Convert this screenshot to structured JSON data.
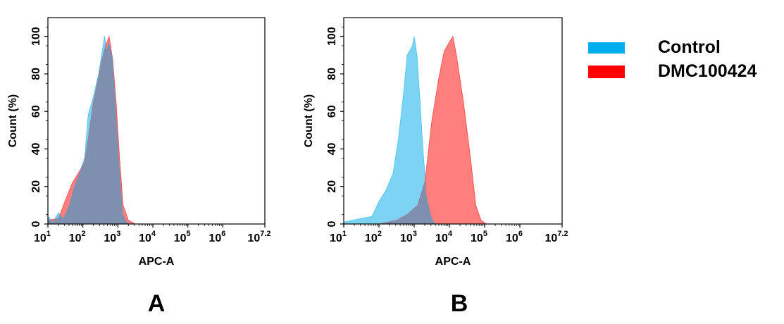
{
  "colors": {
    "control": "#00aeef",
    "sample": "#ff0000",
    "control_fill": "#7dd3f3",
    "sample_fill": "#ff7f7f",
    "overlap_fill": "#7f8fb0"
  },
  "legend": {
    "placement": "right",
    "items": [
      {
        "label": "Control",
        "color": "#00aeef"
      },
      {
        "label": "DMC100424",
        "color": "#ff0000"
      }
    ]
  },
  "chart_data": [
    {
      "type": "area",
      "panel_label": "A",
      "xlabel": "APC-A",
      "ylabel": "Count  (%)",
      "xscale": "log",
      "xlim": [
        10,
        15848932
      ],
      "ylim": [
        0,
        110
      ],
      "x_ticks": [
        {
          "base": "10",
          "exp": "1",
          "value": 10
        },
        {
          "base": "10",
          "exp": "2",
          "value": 100
        },
        {
          "base": "10",
          "exp": "3",
          "value": 1000
        },
        {
          "base": "10",
          "exp": "4",
          "value": 10000
        },
        {
          "base": "10",
          "exp": "5",
          "value": 100000
        },
        {
          "base": "10",
          "exp": "6",
          "value": 1000000
        },
        {
          "base": "10",
          "exp": "7.2",
          "value": 15848932
        }
      ],
      "y_ticks": [
        "0",
        "20",
        "40",
        "60",
        "80",
        "100"
      ],
      "grid": false,
      "series": [
        {
          "name": "Control",
          "x": [
            10,
            14,
            20,
            28,
            40,
            56,
            79,
            112,
            141,
            200,
            282,
            355,
            417,
            479,
            562,
            708,
            891,
            1122,
            1413,
            1778,
            2512
          ],
          "y": [
            4,
            1,
            6,
            3,
            10,
            20,
            27,
            35,
            58,
            68,
            80,
            92,
            100,
            93,
            97,
            88,
            60,
            30,
            5,
            1,
            0
          ]
        },
        {
          "name": "DMC100424",
          "x": [
            10,
            20,
            32,
            50,
            79,
            112,
            141,
            200,
            282,
            355,
            447,
            562,
            708,
            891,
            1122,
            1413,
            1995,
            3162
          ],
          "y": [
            2,
            3,
            13,
            22,
            28,
            33,
            45,
            65,
            78,
            88,
            95,
            100,
            88,
            65,
            35,
            10,
            2,
            0
          ]
        }
      ]
    },
    {
      "type": "area",
      "panel_label": "B",
      "xlabel": "APC-A",
      "ylabel": "Count  (%)",
      "xscale": "log",
      "xlim": [
        10,
        15848932
      ],
      "ylim": [
        0,
        110
      ],
      "x_ticks": [
        {
          "base": "10",
          "exp": "1",
          "value": 10
        },
        {
          "base": "10",
          "exp": "2",
          "value": 100
        },
        {
          "base": "10",
          "exp": "3",
          "value": 1000
        },
        {
          "base": "10",
          "exp": "4",
          "value": 10000
        },
        {
          "base": "10",
          "exp": "5",
          "value": 100000
        },
        {
          "base": "10",
          "exp": "6",
          "value": 1000000
        },
        {
          "base": "10",
          "exp": "7.2",
          "value": 15848932
        }
      ],
      "y_ticks": [
        "0",
        "20",
        "40",
        "60",
        "80",
        "100"
      ],
      "grid": false,
      "series": [
        {
          "name": "Control",
          "x": [
            10,
            32,
            63,
            100,
            158,
            251,
            355,
            501,
            631,
            891,
            1000,
            1202,
            1413,
            1778,
            2239,
            3162,
            3981
          ],
          "y": [
            1,
            3,
            4,
            12,
            18,
            27,
            45,
            70,
            90,
            95,
            100,
            90,
            70,
            40,
            15,
            3,
            0
          ]
        },
        {
          "name": "DMC100424",
          "x": [
            100,
            316,
            631,
            1259,
            1995,
            3162,
            5012,
            7079,
            10000,
            12589,
            15849,
            25119,
            39811,
            56234,
            79433,
            112202
          ],
          "y": [
            0,
            2,
            5,
            10,
            22,
            55,
            78,
            92,
            97,
            100,
            90,
            65,
            35,
            10,
            2,
            0
          ]
        }
      ]
    }
  ]
}
